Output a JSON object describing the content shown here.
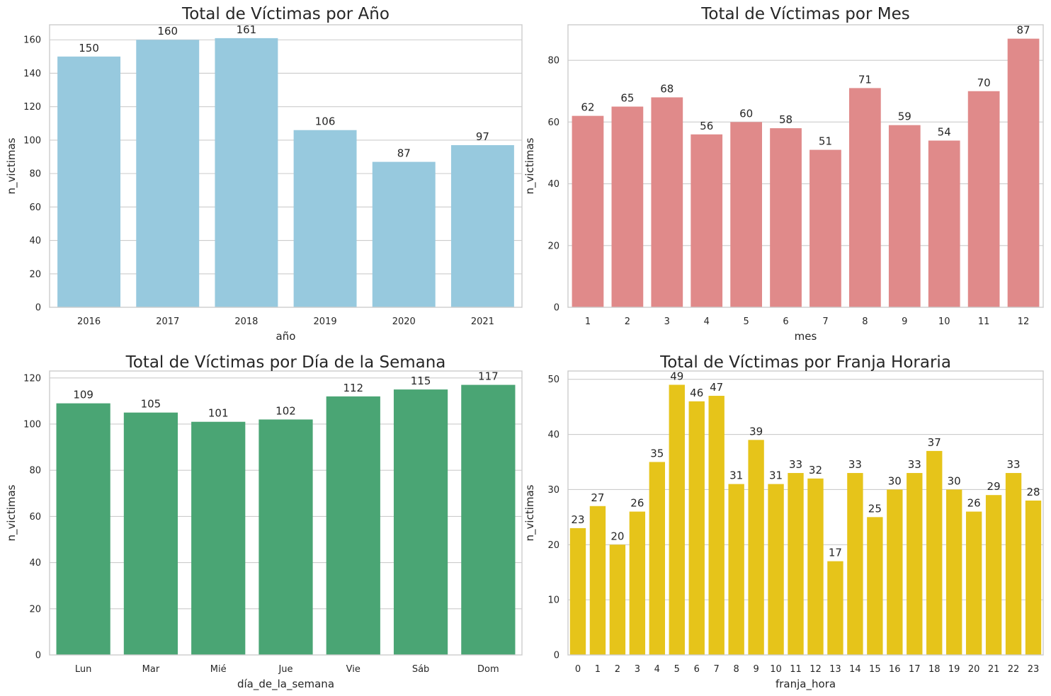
{
  "chart_data": [
    {
      "type": "bar",
      "title": "Total de Víctimas por Año",
      "xlabel": "año",
      "ylabel": "n_victimas",
      "categories": [
        "2016",
        "2017",
        "2018",
        "2019",
        "2020",
        "2021"
      ],
      "values": [
        150,
        160,
        161,
        106,
        87,
        97
      ],
      "ylim": [
        0,
        169
      ],
      "yticks": [
        0,
        20,
        40,
        60,
        80,
        100,
        120,
        140,
        160
      ],
      "color": "#8ecae6",
      "grid": true
    },
    {
      "type": "bar",
      "title": "Total de Víctimas por Mes",
      "xlabel": "mes",
      "ylabel": "n_victimas",
      "categories": [
        "1",
        "2",
        "3",
        "4",
        "5",
        "6",
        "7",
        "8",
        "9",
        "10",
        "11",
        "12"
      ],
      "values": [
        62,
        65,
        68,
        56,
        60,
        58,
        51,
        71,
        59,
        54,
        70,
        87
      ],
      "ylim": [
        0,
        91.5
      ],
      "yticks": [
        0,
        20,
        40,
        60,
        80
      ],
      "color": "#f08080",
      "grid": true
    },
    {
      "type": "bar",
      "title": "Total de Víctimas por Día de la Semana",
      "xlabel": "día_de_la_semana",
      "ylabel": "n_victimas",
      "categories": [
        "Lun",
        "Mar",
        "Mié",
        "Jue",
        "Vie",
        "Sáb",
        "Dom"
      ],
      "values": [
        109,
        105,
        101,
        102,
        112,
        115,
        117
      ],
      "ylim": [
        0,
        123
      ],
      "yticks": [
        0,
        20,
        40,
        60,
        80,
        100,
        120
      ],
      "color": "#3cb371",
      "grid": true
    },
    {
      "type": "bar",
      "title": "Total de Víctimas por Franja Horaria",
      "xlabel": "franja_hora",
      "ylabel": "n_victimas",
      "categories": [
        "0",
        "1",
        "2",
        "3",
        "4",
        "5",
        "6",
        "7",
        "8",
        "9",
        "10",
        "11",
        "12",
        "13",
        "14",
        "15",
        "16",
        "17",
        "18",
        "19",
        "20",
        "21",
        "22",
        "23"
      ],
      "values": [
        23,
        27,
        20,
        26,
        35,
        49,
        46,
        47,
        31,
        39,
        31,
        33,
        32,
        17,
        33,
        25,
        30,
        33,
        37,
        30,
        26,
        29,
        33,
        28
      ],
      "ylim": [
        0,
        51.5
      ],
      "yticks": [
        0,
        10,
        20,
        30,
        40,
        50
      ],
      "color": "#ffd700",
      "grid": true
    }
  ]
}
